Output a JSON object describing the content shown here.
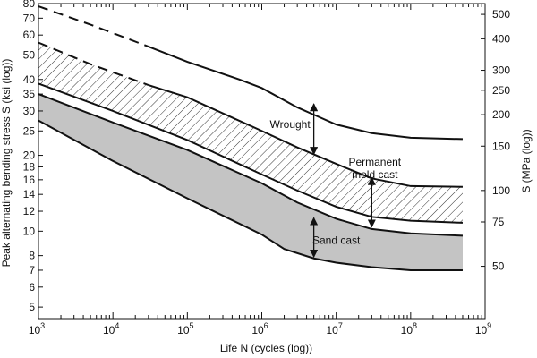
{
  "chart_data": {
    "type": "area",
    "x_scale": "log",
    "y_scale": "log",
    "xlim": [
      1000,
      1000000000
    ],
    "ylim": [
      4.5,
      80
    ],
    "y2lim_MPa": [
      31,
      552
    ],
    "grid": false,
    "xlabel": "Life N (cycles (log))",
    "ylabel": "Peak alternating bending stress S (ksi (log))",
    "y2label": "S (MPa (log))",
    "x_ticks": [
      {
        "value": 1000,
        "base": "10",
        "exp": "3"
      },
      {
        "value": 10000,
        "base": "10",
        "exp": "4"
      },
      {
        "value": 100000,
        "base": "10",
        "exp": "5"
      },
      {
        "value": 1000000,
        "base": "10",
        "exp": "6"
      },
      {
        "value": 10000000,
        "base": "10",
        "exp": "7"
      },
      {
        "value": 100000000,
        "base": "10",
        "exp": "8"
      },
      {
        "value": 1000000000,
        "base": "10",
        "exp": "9"
      }
    ],
    "y_ticks": [
      5,
      6,
      7,
      8,
      10,
      12,
      14,
      16,
      18,
      20,
      25,
      30,
      35,
      40,
      50,
      60,
      70,
      80
    ],
    "y2_ticks": [
      50,
      75,
      100,
      150,
      200,
      250,
      300,
      400,
      500
    ],
    "series": [
      {
        "name": "Wrought",
        "style": "solid-dashed-start",
        "dashed_until": 30000,
        "x": [
          1000,
          5000,
          30000,
          100000,
          500000,
          1000000,
          3000000,
          5000000,
          10000000,
          30000000,
          100000000,
          500000000
        ],
        "y": [
          78,
          66,
          54,
          47,
          40,
          37,
          31,
          29,
          26.5,
          24.5,
          23.5,
          23.2
        ]
      },
      {
        "name": "Permanent mold cast upper",
        "style": "solid-dashed-start",
        "dashed_until": 8000,
        "x": [
          1000,
          5000,
          30000,
          100000,
          1000000,
          3000000,
          10000000,
          30000000,
          100000000,
          500000000
        ],
        "y": [
          56,
          46,
          38,
          34,
          25,
          21.5,
          18.5,
          16.2,
          15.1,
          15.0
        ]
      },
      {
        "name": "Permanent mold cast lower",
        "style": "solid",
        "x": [
          1000,
          10000,
          100000,
          1000000,
          3000000,
          10000000,
          30000000,
          100000000,
          500000000
        ],
        "y": [
          38.5,
          30,
          23,
          16.8,
          14.5,
          12.5,
          11.4,
          11.0,
          10.8
        ]
      },
      {
        "name": "Sand cast upper",
        "style": "solid",
        "x": [
          1000,
          10000,
          100000,
          1000000,
          3000000,
          10000000,
          30000000,
          100000000,
          500000000
        ],
        "y": [
          35,
          27,
          21,
          15.5,
          13.0,
          11.2,
          10.2,
          9.8,
          9.6
        ]
      },
      {
        "name": "Sand cast lower",
        "style": "solid",
        "x": [
          1000,
          10000,
          100000,
          1000000,
          2000000,
          5000000,
          10000000,
          30000000,
          100000000,
          500000000
        ],
        "y": [
          27.5,
          19,
          13.5,
          9.7,
          8.5,
          7.8,
          7.5,
          7.2,
          7.0,
          7.0
        ]
      }
    ],
    "bands": [
      {
        "name": "Permanent mold cast",
        "fill": "hatch",
        "upper": "Permanent mold cast upper",
        "lower": "Permanent mold cast lower"
      },
      {
        "name": "Sand cast",
        "fill": "#c4c4c4",
        "upper": "Sand cast upper",
        "lower": "Sand cast lower"
      }
    ],
    "annotations": [
      {
        "lines": [
          "Wrought"
        ],
        "x": 2400000,
        "y": 25.7,
        "anchor": "middle"
      },
      {
        "lines": [
          "Permanent",
          "mold cast"
        ],
        "x": 33000000,
        "y": 18.2,
        "anchor": "middle"
      },
      {
        "lines": [
          "Sand cast"
        ],
        "x": 10000000,
        "y": 8.9,
        "anchor": "middle"
      }
    ],
    "arrows": [
      {
        "x": 5000000,
        "y_from": 32,
        "y_to": 20.2
      },
      {
        "x": 30000000,
        "y_from": 16.3,
        "y_to": 10.4
      },
      {
        "x": 5000000,
        "y_from": 11.3,
        "y_to": 7.9
      }
    ],
    "colors": {
      "line": "#111111",
      "sand_fill": "#c4c4c4",
      "hatch": "#333333"
    }
  }
}
